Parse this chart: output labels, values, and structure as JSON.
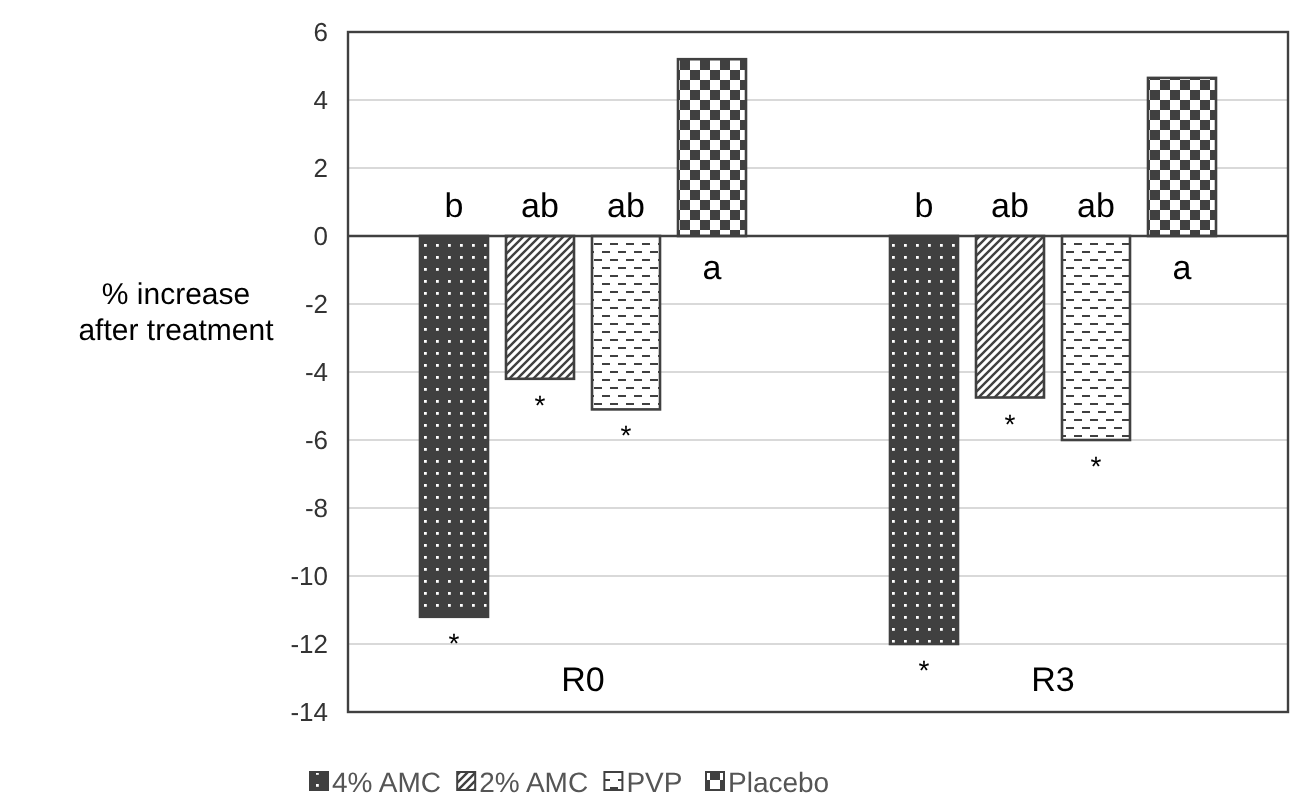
{
  "chart_data": {
    "type": "bar",
    "ylabel": "% increase\nafter treatment",
    "categories": [
      "R0",
      "R3"
    ],
    "series": [
      {
        "name": "4% AMC",
        "color": "#404040",
        "values": [
          -11.2,
          -12.0
        ]
      },
      {
        "name": "2% AMC",
        "color": "#404040",
        "values": [
          -4.2,
          -4.75
        ]
      },
      {
        "name": "PVP",
        "color": "#404040",
        "values": [
          -5.1,
          -6.0
        ]
      },
      {
        "name": "Placebo",
        "color": "#404040",
        "values": [
          5.2,
          4.65
        ]
      }
    ],
    "ylim": [
      -14,
      6
    ],
    "yticks": [
      -14,
      -12,
      -10,
      -8,
      -6,
      -4,
      -2,
      0,
      2,
      4,
      6
    ],
    "grid": "y",
    "legend": "bottom",
    "annotations": [
      "b",
      "ab",
      "ab",
      "a",
      "*",
      "*",
      "*",
      "b",
      "ab",
      "ab",
      "a",
      "*",
      "*",
      "*"
    ]
  }
}
